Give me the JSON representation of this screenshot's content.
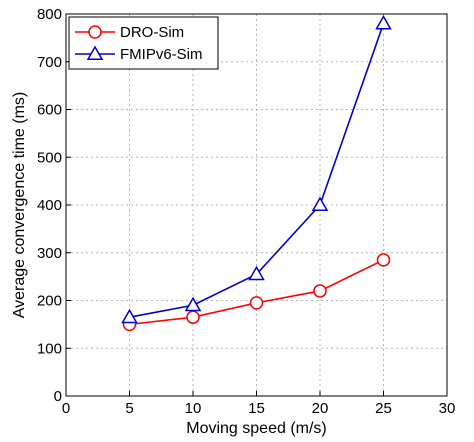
{
  "chart_data": {
    "type": "line",
    "xlabel": "Moving speed (m/s)",
    "ylabel": "Average convergence time (ms)",
    "xlim": [
      0,
      30
    ],
    "ylim": [
      0,
      800
    ],
    "xticks": [
      0,
      5,
      10,
      15,
      20,
      25,
      30
    ],
    "yticks": [
      0,
      100,
      200,
      300,
      400,
      500,
      600,
      700,
      800
    ],
    "grid": true,
    "legend_position": "top-left",
    "series": [
      {
        "name": "DRO-Sim",
        "color": "#ff0000",
        "marker": "circle",
        "x": [
          5,
          10,
          15,
          20,
          25
        ],
        "y": [
          150,
          165,
          195,
          220,
          285
        ]
      },
      {
        "name": "FMIPv6-Sim",
        "color": "#0000cc",
        "marker": "triangle",
        "x": [
          5,
          10,
          15,
          20,
          25
        ],
        "y": [
          165,
          190,
          255,
          400,
          780
        ]
      }
    ]
  }
}
